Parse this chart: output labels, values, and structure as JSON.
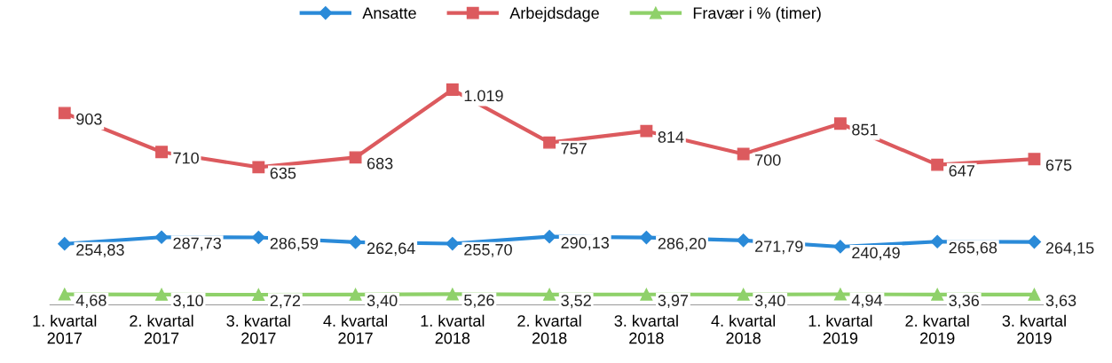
{
  "chart_data": {
    "type": "line",
    "categories": [
      "1. kvartal\n2017",
      "2. kvartal\n2017",
      "3. kvartal\n2017",
      "4. kvartal\n2017",
      "1. kvartal\n2018",
      "2. kvartal\n2018",
      "3. kvartal\n2018",
      "4. kvartal\n2018",
      "1. kvartal\n2019",
      "2. kvartal\n2019",
      "3. kvartal\n2019"
    ],
    "series": [
      {
        "name": "Ansatte",
        "color": "#2a8ad8",
        "marker": "diamond",
        "values": [
          254.83,
          287.73,
          286.59,
          262.64,
          255.7,
          290.13,
          286.2,
          271.79,
          240.49,
          265.68,
          264.15
        ],
        "value_labels": [
          "254,83",
          "287,73",
          "286,59",
          "262,64",
          "255,70",
          "290,13",
          "286,20",
          "271,79",
          "240,49",
          "265,68",
          "264,15"
        ]
      },
      {
        "name": "Arbejdsdage",
        "color": "#dc5a5e",
        "marker": "square",
        "values": [
          903,
          710,
          635,
          683,
          1019,
          757,
          814,
          700,
          851,
          647,
          675
        ],
        "value_labels": [
          "903",
          "710",
          "635",
          "683",
          "1.019",
          "757",
          "814",
          "700",
          "851",
          "647",
          "675"
        ]
      },
      {
        "name": "Fravær i % (timer)",
        "color": "#8fd16a",
        "marker": "triangle",
        "values": [
          4.68,
          3.1,
          2.72,
          3.4,
          5.26,
          3.52,
          3.97,
          3.4,
          4.94,
          3.36,
          3.63
        ],
        "value_labels": [
          "4,68",
          "3,10",
          "2,72",
          "3,40",
          "5,26",
          "3,52",
          "3,97",
          "3,40",
          "4,94",
          "3,36",
          "3,63"
        ]
      }
    ],
    "legend": "top",
    "grid": false,
    "line_style": "solid"
  }
}
